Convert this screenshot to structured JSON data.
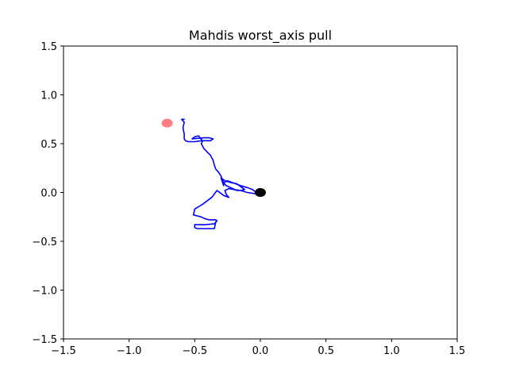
{
  "chart_data": {
    "type": "scatter",
    "title": "Mahdis worst_axis pull",
    "xlabel": "",
    "ylabel": "",
    "xlim": [
      -1.5,
      1.5
    ],
    "ylim": [
      -1.5,
      1.5
    ],
    "x_ticks": [
      -1.5,
      -1.0,
      -0.5,
      0.0,
      0.5,
      1.0,
      1.5
    ],
    "y_ticks": [
      -1.5,
      -1.0,
      -0.5,
      0.0,
      0.5,
      1.0,
      1.5
    ],
    "x_tick_labels": [
      "−1.5",
      "−1.0",
      "−0.5",
      "0.0",
      "0.5",
      "1.0",
      "1.5"
    ],
    "y_tick_labels": [
      "−1.5",
      "−1.0",
      "−0.5",
      "0.0",
      "0.5",
      "1.0",
      "1.5"
    ],
    "grid": false,
    "series": [
      {
        "kind": "line",
        "color": "#0000ff",
        "x": [
          -0.58,
          -0.6,
          -0.58,
          -0.59,
          -0.58,
          -0.58,
          -0.57,
          -0.55,
          -0.5,
          -0.45,
          -0.38,
          -0.36,
          -0.39,
          -0.43,
          -0.52,
          -0.5,
          -0.47,
          -0.46,
          -0.44,
          -0.45,
          -0.43,
          -0.38,
          -0.36,
          -0.35,
          -0.34,
          -0.32,
          -0.3,
          -0.29,
          -0.28,
          -0.28,
          -0.3,
          -0.27,
          -0.22,
          -0.18,
          -0.16,
          -0.14,
          -0.12,
          -0.15,
          -0.18,
          -0.21,
          -0.26,
          -0.28,
          -0.25,
          -0.21,
          -0.15,
          -0.1,
          -0.06,
          -0.04,
          -0.02,
          0.0,
          -0.05,
          -0.1,
          -0.15,
          -0.2,
          -0.24,
          -0.27,
          -0.26,
          -0.24,
          -0.28,
          -0.33,
          -0.37,
          -0.44,
          -0.5,
          -0.51,
          -0.48,
          -0.45,
          -0.42,
          -0.39,
          -0.35,
          -0.34,
          -0.33,
          -0.35,
          -0.42,
          -0.5,
          -0.5,
          -0.48,
          -0.46,
          -0.35,
          -0.34,
          -0.34
        ],
        "y": [
          0.75,
          0.75,
          0.72,
          0.66,
          0.6,
          0.55,
          0.53,
          0.52,
          0.52,
          0.53,
          0.53,
          0.55,
          0.56,
          0.56,
          0.55,
          0.57,
          0.58,
          0.56,
          0.53,
          0.5,
          0.45,
          0.38,
          0.33,
          0.28,
          0.24,
          0.21,
          0.17,
          0.13,
          0.1,
          0.07,
          0.15,
          0.12,
          0.1,
          0.09,
          0.07,
          0.05,
          0.03,
          0.02,
          0.02,
          0.04,
          0.07,
          0.1,
          0.12,
          0.1,
          0.07,
          0.05,
          0.03,
          0.01,
          0.0,
          -0.02,
          -0.01,
          0.0,
          0.02,
          0.03,
          0.04,
          0.02,
          -0.02,
          -0.05,
          -0.03,
          0.02,
          -0.05,
          -0.12,
          -0.17,
          -0.23,
          -0.24,
          -0.25,
          -0.27,
          -0.28,
          -0.28,
          -0.28,
          -0.29,
          -0.32,
          -0.33,
          -0.33,
          -0.36,
          -0.37,
          -0.37,
          -0.37,
          -0.3,
          -0.31
        ]
      },
      {
        "kind": "marker",
        "color": "#000000",
        "opacity": 1,
        "x": [
          0.0
        ],
        "y": [
          0.0
        ]
      },
      {
        "kind": "marker",
        "color": "#ff0000",
        "opacity": 0.5,
        "x": [
          -0.71
        ],
        "y": [
          0.71
        ]
      }
    ]
  }
}
